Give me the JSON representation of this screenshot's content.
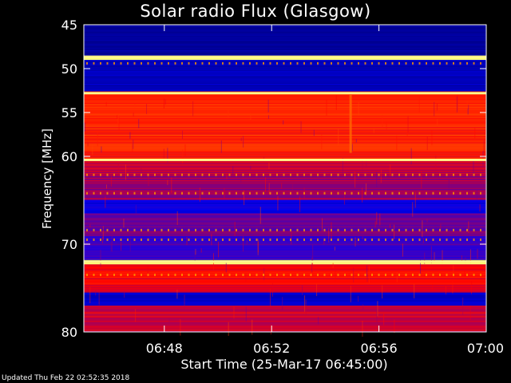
{
  "chart_data": {
    "type": "heatmap",
    "title": "Solar radio Flux (Glasgow)",
    "ylabel": "Frequency [MHz]",
    "xlabel": "Start Time (25-Mar-17 06:45:00)",
    "y_ticks": [
      45,
      50,
      55,
      60,
      70,
      80
    ],
    "ylim": [
      45,
      80
    ],
    "x_ticks": [
      "06:48",
      "06:52",
      "06:56",
      "07:00"
    ],
    "x_tick_minutes": [
      3,
      7,
      11,
      15
    ],
    "xlim_minutes": [
      0,
      15
    ],
    "colormap": [
      "#000080",
      "#0000ff",
      "#ff0000",
      "#ffaa00",
      "#ffff80"
    ],
    "bands": [
      {
        "from": 45.0,
        "to": 48.5,
        "level": 0.05
      },
      {
        "from": 48.5,
        "to": 49.0,
        "level": 1.0
      },
      {
        "from": 49.0,
        "to": 52.6,
        "level": 0.12
      },
      {
        "from": 52.6,
        "to": 60.5,
        "level": 0.55
      },
      {
        "from": 60.5,
        "to": 62.0,
        "level": 0.45
      },
      {
        "from": 62.0,
        "to": 65.0,
        "level": 0.4
      },
      {
        "from": 65.0,
        "to": 66.5,
        "level": 0.2
      },
      {
        "from": 66.5,
        "to": 69.0,
        "level": 0.35
      },
      {
        "from": 69.0,
        "to": 71.8,
        "level": 0.3
      },
      {
        "from": 71.8,
        "to": 72.3,
        "level": 1.0
      },
      {
        "from": 72.3,
        "to": 75.5,
        "level": 0.5
      },
      {
        "from": 75.5,
        "to": 77.0,
        "level": 0.15
      },
      {
        "from": 77.0,
        "to": 80.0,
        "level": 0.45
      }
    ],
    "bright_lines_mhz": [
      48.7,
      52.8,
      60.4,
      72.0
    ],
    "grid": false
  },
  "footer": {
    "updated": "Updated Thu Feb 22 02:52:35 2018"
  }
}
